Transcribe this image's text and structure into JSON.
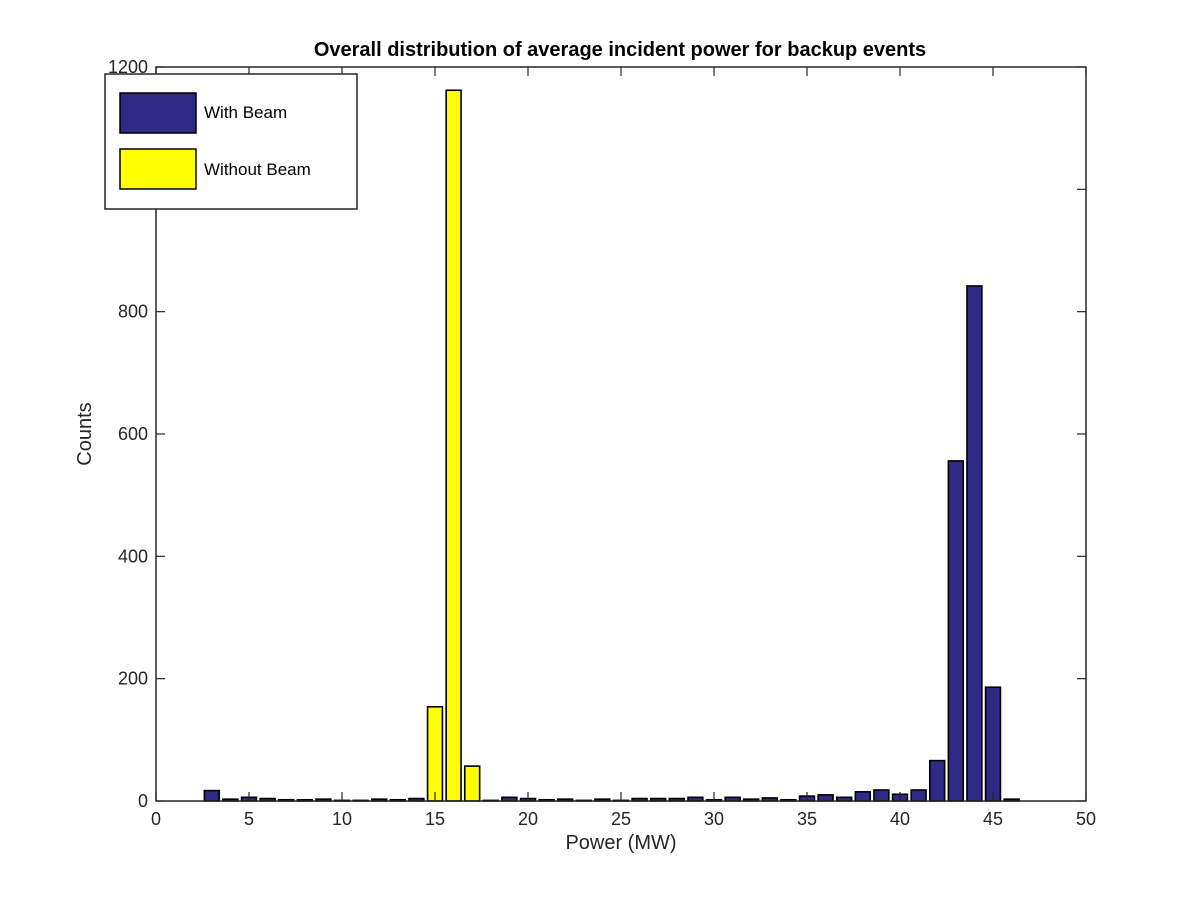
{
  "chart_data": {
    "type": "bar",
    "title": "Overall distribution of average incident power for backup events",
    "xlabel": "Power (MW)",
    "ylabel": "Counts",
    "xlim": [
      0,
      50
    ],
    "ylim": [
      0,
      1200
    ],
    "xticks": [
      0,
      5,
      10,
      15,
      20,
      25,
      30,
      35,
      40,
      45,
      50
    ],
    "yticks": [
      0,
      200,
      400,
      600,
      800,
      1200
    ],
    "bar_width": 0.8,
    "grid": false,
    "legend_position": "top-left",
    "series": [
      {
        "name": "With Beam",
        "color": "#2e2a85",
        "x": [
          1,
          2,
          3,
          4,
          5,
          6,
          7,
          8,
          9,
          10,
          11,
          12,
          13,
          14,
          18,
          19,
          20,
          21,
          22,
          23,
          24,
          25,
          26,
          27,
          28,
          29,
          30,
          31,
          32,
          33,
          34,
          35,
          36,
          37,
          38,
          39,
          40,
          41,
          42,
          43,
          44,
          45,
          46,
          47,
          48,
          49
        ],
        "values": [
          0,
          0,
          17,
          3,
          6,
          4,
          2,
          2,
          3,
          1,
          1,
          3,
          2,
          4,
          1,
          6,
          4,
          2,
          3,
          1,
          3,
          1,
          4,
          4,
          4,
          6,
          2,
          6,
          3,
          5,
          2,
          8,
          10,
          6,
          15,
          18,
          11,
          18,
          66,
          556,
          842,
          186,
          3,
          0,
          0,
          0
        ]
      },
      {
        "name": "Without Beam",
        "color": "#ffff00",
        "x": [
          15,
          16,
          17
        ],
        "values": [
          154,
          1162,
          57
        ]
      }
    ]
  }
}
